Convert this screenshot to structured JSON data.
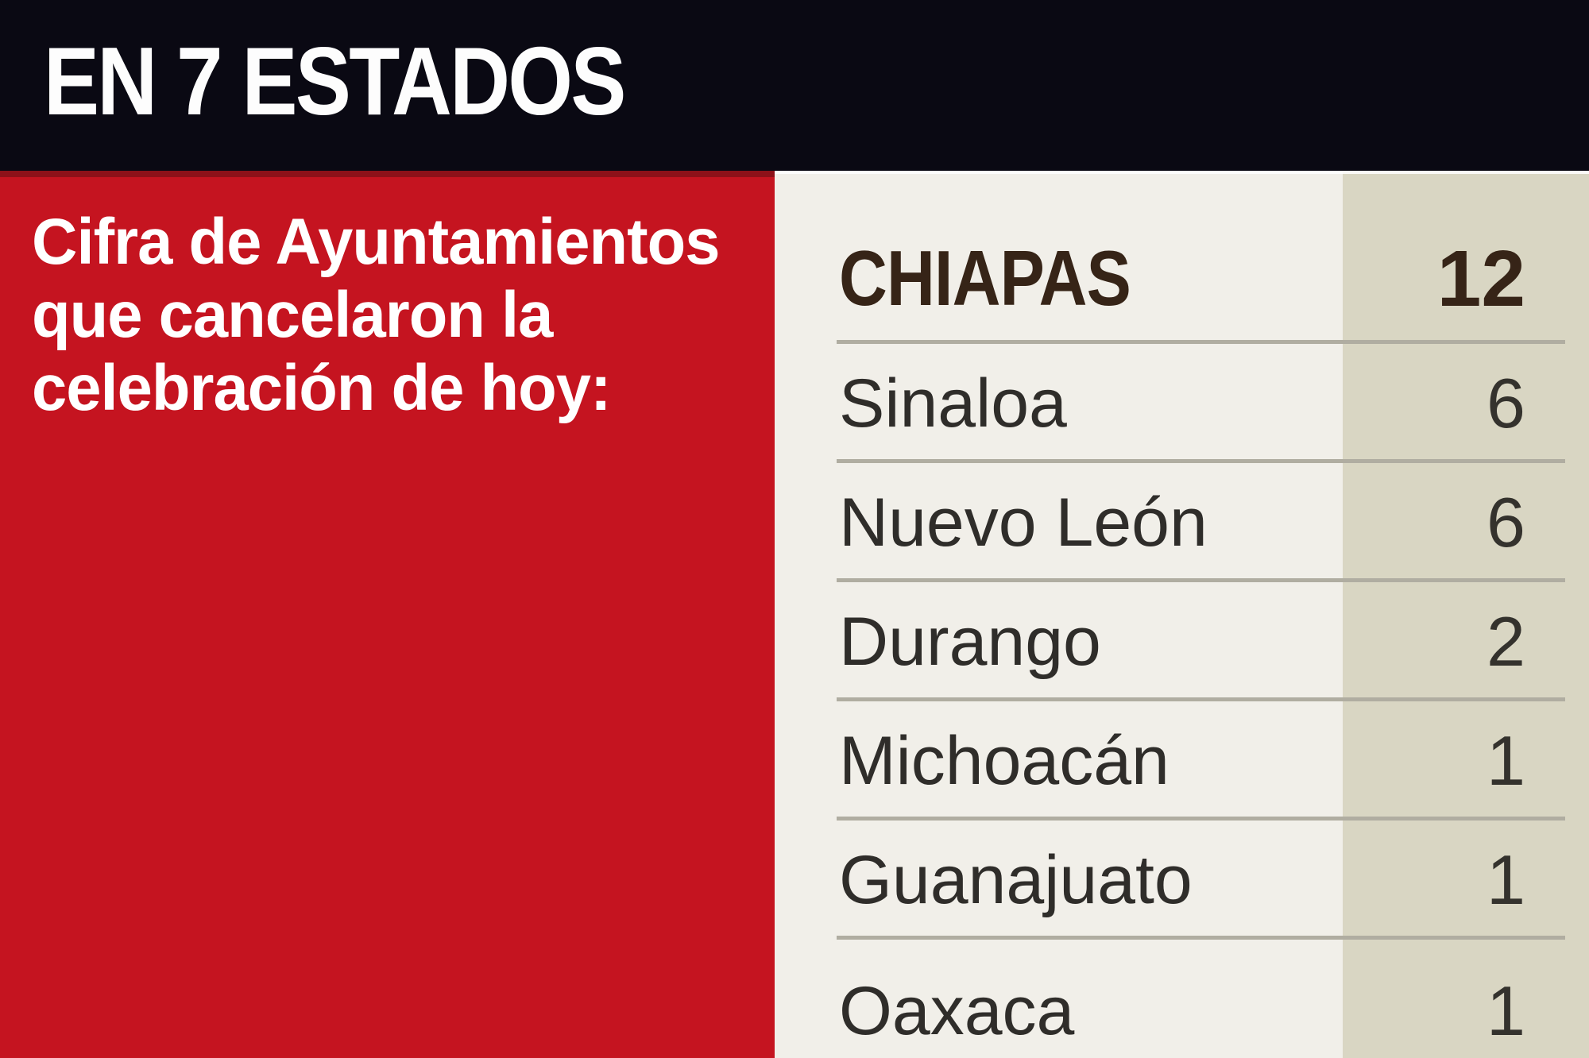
{
  "header": {
    "title": "EN 7 ESTADOS"
  },
  "caption": {
    "lines": [
      "Cifra de Ayuntamientos",
      "que cancelaron la",
      "celebración de hoy:"
    ]
  },
  "chart_data": {
    "type": "table",
    "title": "EN 7 ESTADOS",
    "caption": "Cifra de Ayuntamientos que cancelaron la celebración de hoy:",
    "rows": [
      {
        "state": "CHIAPAS",
        "value": 12,
        "emphasis": true
      },
      {
        "state": "Sinaloa",
        "value": 6,
        "emphasis": false
      },
      {
        "state": "Nuevo León",
        "value": 6,
        "emphasis": false
      },
      {
        "state": "Durango",
        "value": 2,
        "emphasis": false
      },
      {
        "state": "Michoacán",
        "value": 1,
        "emphasis": false
      },
      {
        "state": "Guanajuato",
        "value": 1,
        "emphasis": false
      },
      {
        "state": "Oaxaca",
        "value": 1,
        "emphasis": false
      }
    ]
  },
  "colors": {
    "header_bg": "#0a0913",
    "accent_red": "#c51420",
    "accent_red_dark": "#8d1119",
    "panel_bg": "#f1efe9",
    "value_column_bg": "#d9d6c3",
    "divider": "#b0ada1",
    "text_dark": "#2f2d2a",
    "text_brown": "#362417",
    "text_white": "#ffffff"
  }
}
